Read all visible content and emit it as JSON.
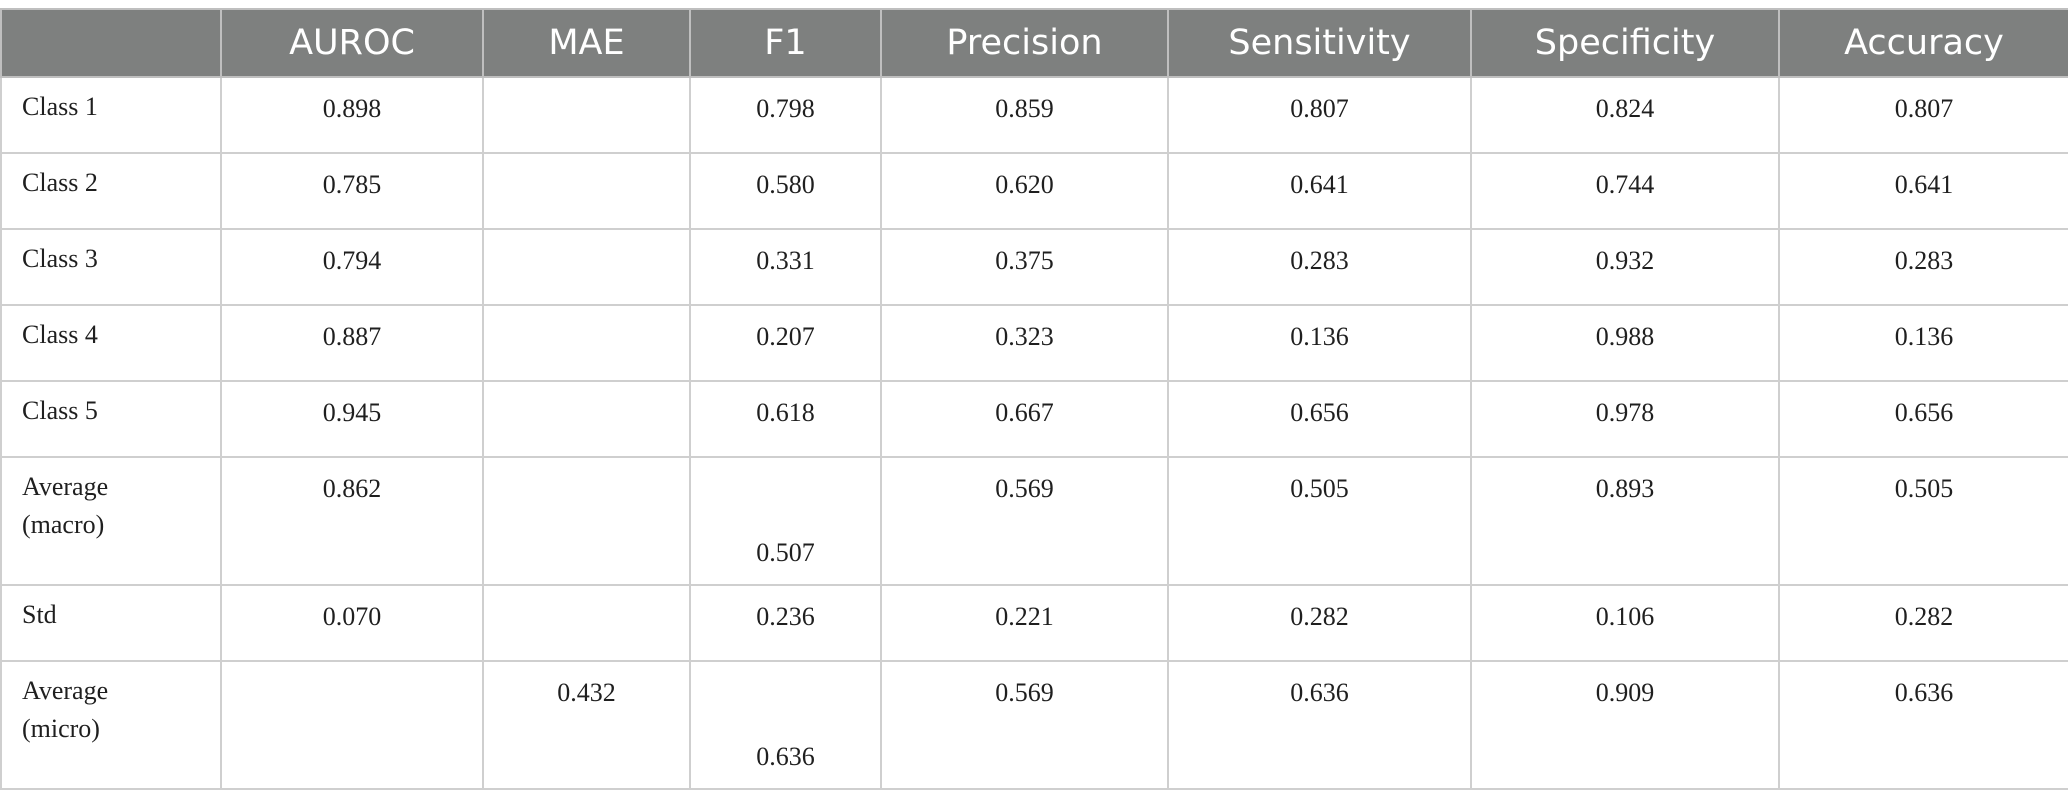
{
  "table": {
    "headers": [
      "",
      "AUROC",
      "MAE",
      "F1",
      "Precision",
      "Sensitivity",
      "Specificity",
      "Accuracy"
    ],
    "rows": [
      {
        "label": "Class 1",
        "auroc": "0.898",
        "mae": "",
        "f1": "0.798",
        "precision": "0.859",
        "sensitivity": "0.807",
        "specificity": "0.824",
        "accuracy": "0.807"
      },
      {
        "label": "Class 2",
        "auroc": "0.785",
        "mae": "",
        "f1": "0.580",
        "precision": "0.620",
        "sensitivity": "0.641",
        "specificity": "0.744",
        "accuracy": "0.641"
      },
      {
        "label": "Class 3",
        "auroc": "0.794",
        "mae": "",
        "f1": "0.331",
        "precision": "0.375",
        "sensitivity": "0.283",
        "specificity": "0.932",
        "accuracy": "0.283"
      },
      {
        "label": "Class 4",
        "auroc": "0.887",
        "mae": "",
        "f1": "0.207",
        "precision": "0.323",
        "sensitivity": "0.136",
        "specificity": "0.988",
        "accuracy": "0.136"
      },
      {
        "label": "Class 5",
        "auroc": "0.945",
        "mae": "",
        "f1": "0.618",
        "precision": "0.667",
        "sensitivity": "0.656",
        "specificity": "0.978",
        "accuracy": "0.656"
      },
      {
        "label_line1": "Average",
        "label_line2": "(macro)",
        "auroc": "0.862",
        "mae": "",
        "f1": "0.507",
        "precision": "0.569",
        "sensitivity": "0.505",
        "specificity": "0.893",
        "accuracy": "0.505"
      },
      {
        "label": "Std",
        "auroc": "0.070",
        "mae": "",
        "f1": "0.236",
        "precision": "0.221",
        "sensitivity": "0.282",
        "specificity": "0.106",
        "accuracy": "0.282"
      },
      {
        "label_line1": "Average",
        "label_line2": "(micro)",
        "auroc": "",
        "mae": "0.432",
        "f1": "0.636",
        "precision": "0.569",
        "sensitivity": "0.636",
        "specificity": "0.909",
        "accuracy": "0.636"
      }
    ]
  }
}
